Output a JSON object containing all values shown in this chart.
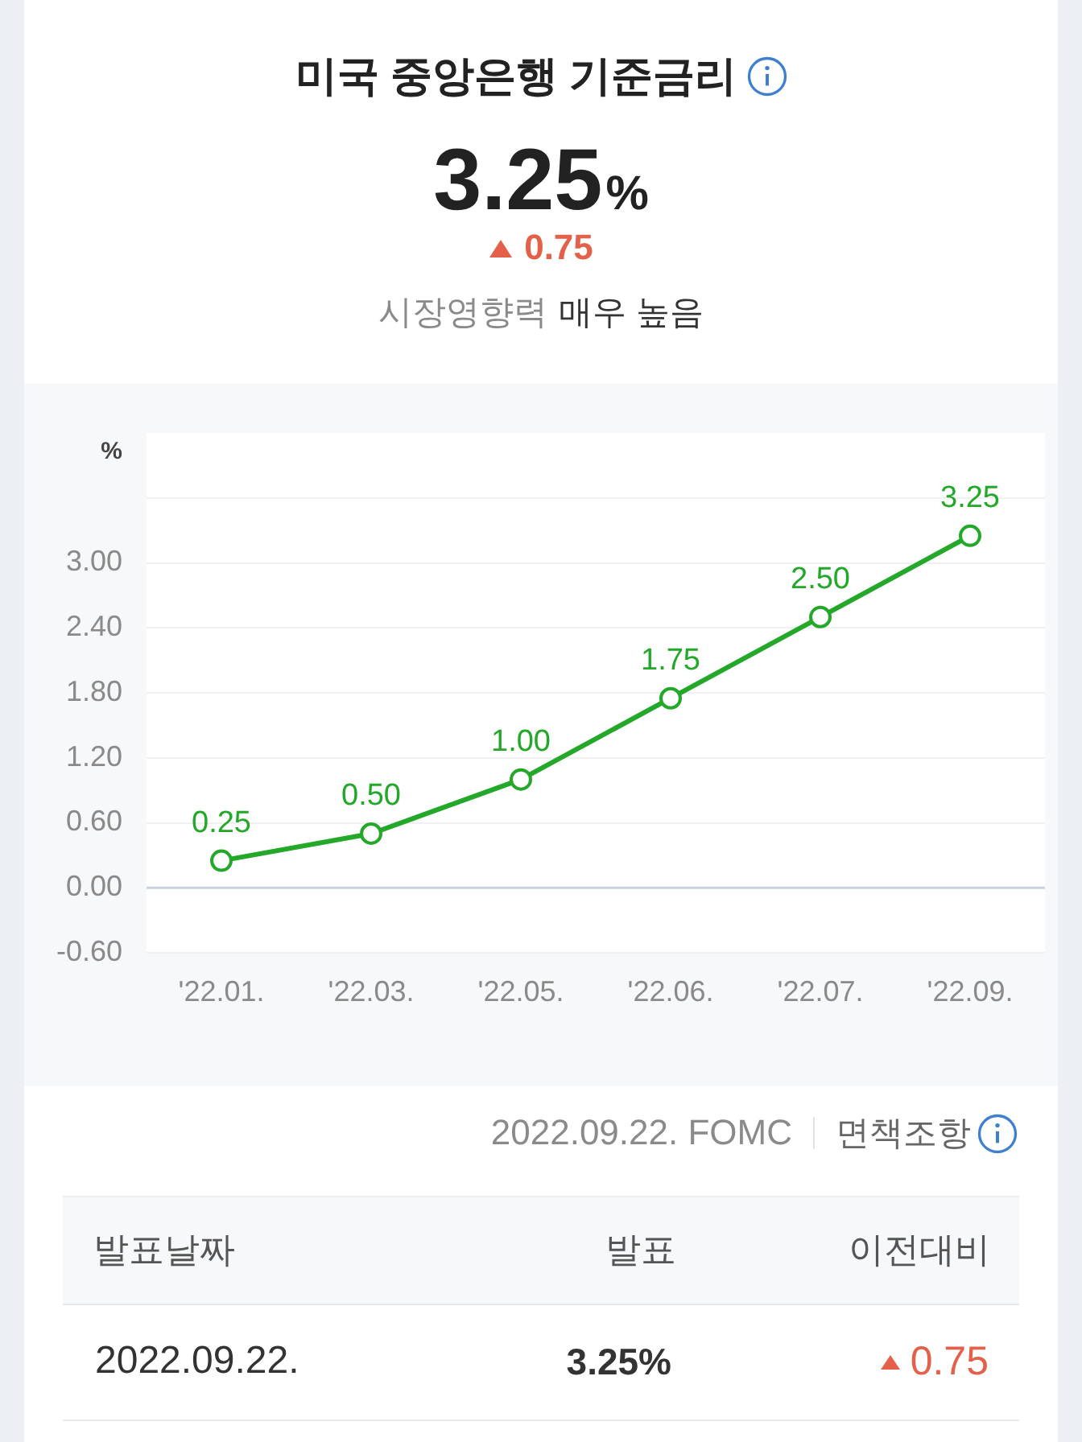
{
  "chart_data": {
    "type": "line",
    "title": "미국 중앙은행 기준금리",
    "ylabel": "%",
    "annotations": [
      "3.25%",
      "0.75",
      "시장영향력",
      "매우 높음",
      "2022.09.22. FOMC",
      "면책조항",
      "발표날짜",
      "발표",
      "이전대비",
      "2022.09.22.",
      "3.25%",
      "0.75"
    ],
    "categories": [
      "'22.01.",
      "'22.03.",
      "'22.05.",
      "'22.06.",
      "'22.07.",
      "'22.09."
    ],
    "values": [
      0.25,
      0.5,
      1,
      1.75,
      2.5,
      3.25
    ],
    "value_labels": [
      "0.25",
      "0.50",
      "1.00",
      "1.75",
      "2.50",
      "3.25"
    ],
    "color": "#23a829",
    "ylim": [
      -0.6,
      4.2
    ],
    "yticks": [
      {
        "value": -0.6,
        "label": "-0.60"
      },
      {
        "value": 0,
        "label": "0.00"
      },
      {
        "value": 0.6,
        "label": "0.60"
      },
      {
        "value": 1.2,
        "label": "1.20"
      },
      {
        "value": 1.8,
        "label": "1.80"
      },
      {
        "value": 2.4,
        "label": "2.40"
      },
      {
        "value": 3,
        "label": "3.00"
      },
      {
        "value": 3.6,
        "label": null
      }
    ],
    "grid": "y",
    "marker": "circle",
    "line_style": "solid",
    "ref_lines": [
      {
        "axis": "y",
        "value": 0,
        "color": "#c9d3df"
      }
    ]
  }
}
